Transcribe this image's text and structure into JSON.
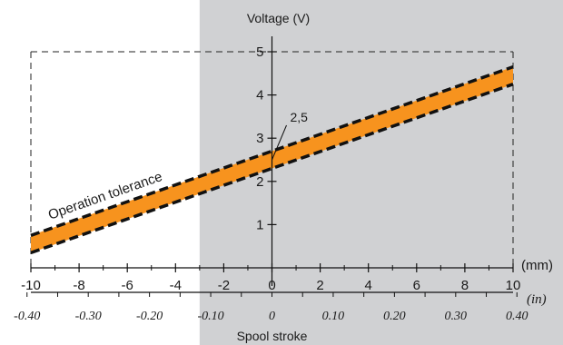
{
  "chart_data": {
    "type": "line",
    "ylabel": "Voltage (V)",
    "xlabel": "Spool stroke",
    "x_unit": "(mm)",
    "x2_unit": "(in)",
    "xlim": [
      -10,
      10
    ],
    "ylim": [
      0,
      5
    ],
    "x_ticks": [
      -10,
      -8,
      -6,
      -4,
      -2,
      0,
      2,
      4,
      6,
      8,
      10
    ],
    "x_tick_labels": [
      "-10",
      "-8",
      "-6",
      "-4",
      "-2",
      "0",
      "2",
      "4",
      "6",
      "8",
      "10"
    ],
    "x2_ticks": [
      -0.4,
      -0.3,
      -0.2,
      -0.1,
      0,
      0.1,
      0.2,
      0.3,
      0.4
    ],
    "x2_tick_labels": [
      "-0.40",
      "-0.30",
      "-0.20",
      "-0.10",
      "0",
      "0.10",
      "0.20",
      "0.30",
      "0.40"
    ],
    "y_ticks": [
      1,
      2,
      3,
      4,
      5
    ],
    "y_tick_labels": [
      "1",
      "2",
      "3",
      "4",
      "5"
    ],
    "series": [
      {
        "x": [
          -10,
          10
        ],
        "y": [
          0.55,
          4.45
        ]
      },
      {
        "x": [
          -10,
          10
        ],
        "y": [
          0.75,
          4.65
        ]
      },
      {
        "x": [
          -10,
          10
        ],
        "y": [
          0.35,
          4.25
        ]
      }
    ],
    "band_label": "Operation tolerance",
    "annotation": {
      "text": "2,5",
      "x": 0,
      "y": 2.5
    },
    "shaded_region_x": [
      -3,
      10
    ],
    "colors": {
      "band": "#f7931e",
      "shade": "#d0d1d3",
      "line": "#111111"
    }
  }
}
